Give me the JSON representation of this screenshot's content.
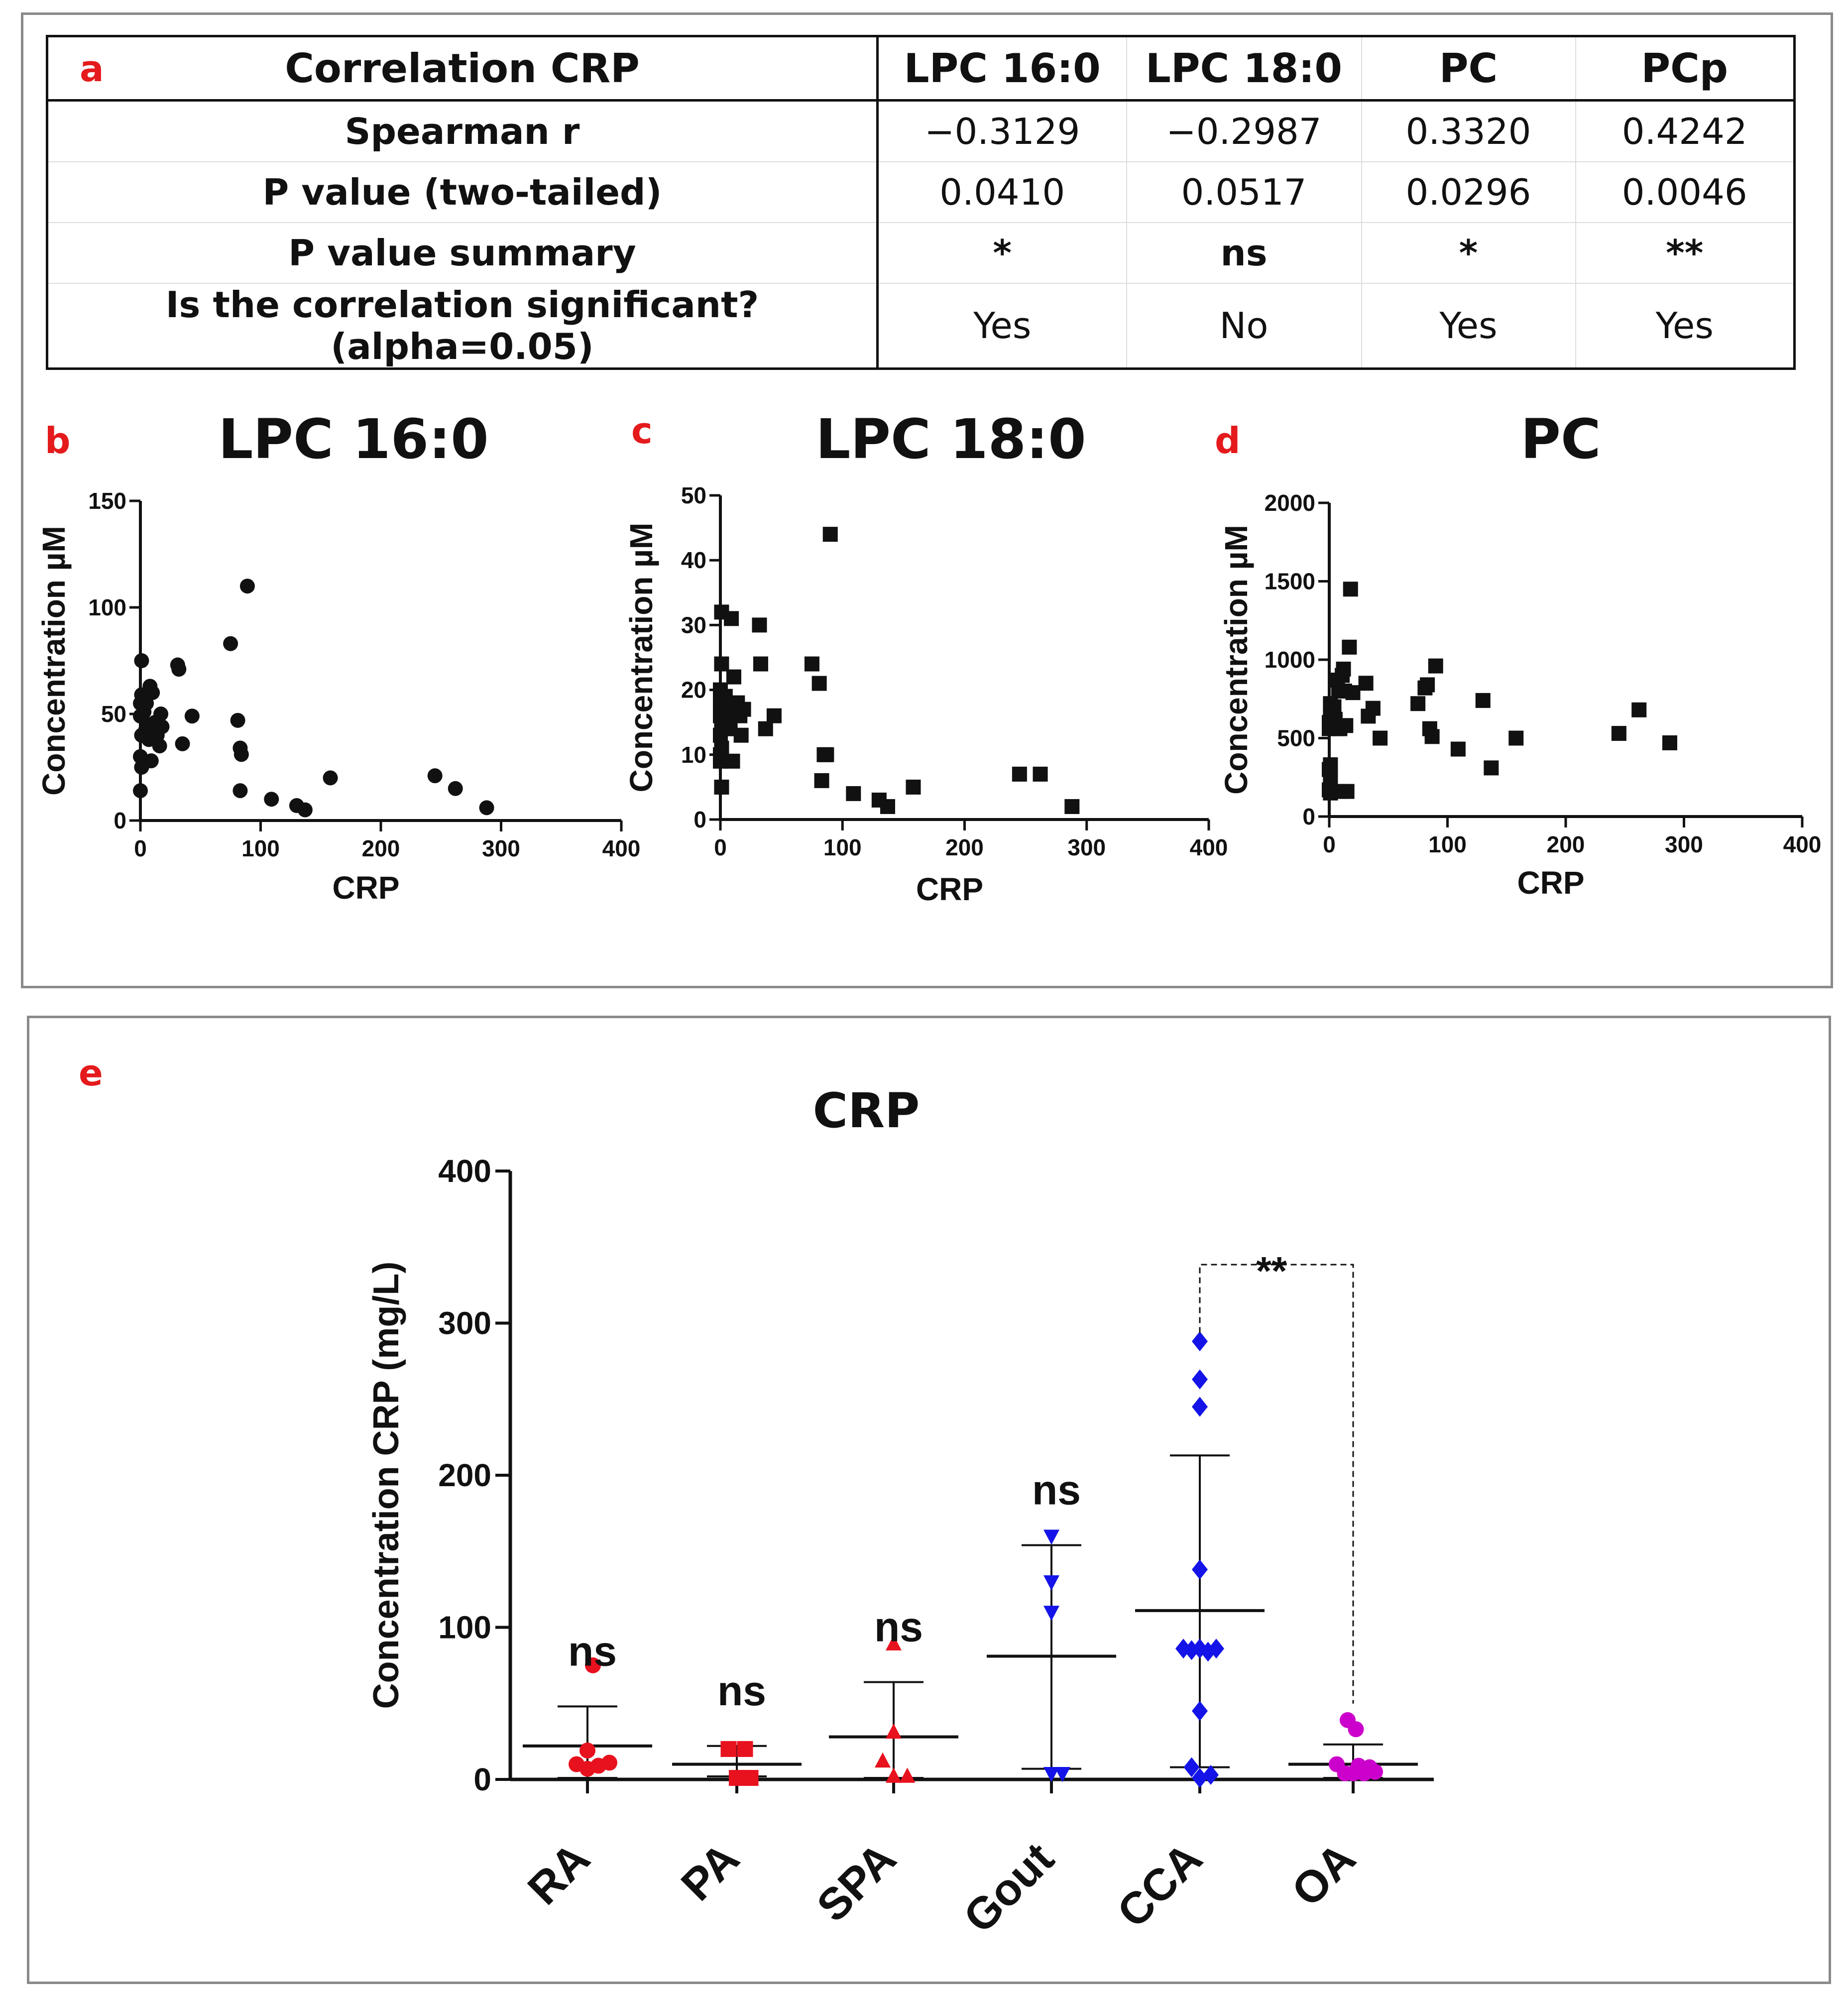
{
  "table": {
    "letter": "a",
    "header": [
      "Correlation CRP",
      "LPC 16:0",
      "LPC 18:0",
      "PC",
      "PCp"
    ],
    "rows": [
      {
        "label": "Spearman r",
        "values": [
          "−0.3129",
          "−0.2987",
          "0.3320",
          "0.4242"
        ],
        "bold": false
      },
      {
        "label": "P value (two-tailed)",
        "values": [
          "0.0410",
          "0.0517",
          "0.0296",
          "0.0046"
        ],
        "bold": false
      },
      {
        "label": "P value summary",
        "values": [
          "*",
          "ns",
          "*",
          "**"
        ],
        "bold": true
      },
      {
        "label": "Is the correlation significant? (alpha=0.05)",
        "values": [
          "Yes",
          "No",
          "Yes",
          "Yes"
        ],
        "bold": false
      }
    ]
  },
  "chart_data": [
    {
      "type": "scatter",
      "letter": "b",
      "title": "LPC 16:0",
      "xlabel": "CRP",
      "ylabel": "Concentration µM",
      "xlim": [
        0,
        400
      ],
      "ylim": [
        0,
        150
      ],
      "xticks": [
        0,
        100,
        200,
        300,
        400
      ],
      "yticks": [
        0,
        50,
        100,
        150
      ],
      "marker": "circle",
      "points": [
        [
          1,
          75
        ],
        [
          1,
          59
        ],
        [
          0,
          55
        ],
        [
          0,
          49
        ],
        [
          1,
          40
        ],
        [
          0,
          30
        ],
        [
          1,
          25
        ],
        [
          0,
          14
        ],
        [
          3,
          51
        ],
        [
          4,
          42
        ],
        [
          3,
          27
        ],
        [
          4,
          58
        ],
        [
          5,
          55
        ],
        [
          6,
          45
        ],
        [
          7,
          38
        ],
        [
          8,
          63
        ],
        [
          9,
          28
        ],
        [
          10,
          60
        ],
        [
          12,
          46
        ],
        [
          14,
          40
        ],
        [
          16,
          35
        ],
        [
          17,
          50
        ],
        [
          18,
          44
        ],
        [
          31,
          73
        ],
        [
          32,
          71
        ],
        [
          35,
          36
        ],
        [
          43,
          49
        ],
        [
          75,
          83
        ],
        [
          81,
          47
        ],
        [
          83,
          34
        ],
        [
          84,
          31
        ],
        [
          83,
          14
        ],
        [
          89,
          110
        ],
        [
          109,
          10
        ],
        [
          130,
          7
        ],
        [
          137,
          5
        ],
        [
          158,
          20
        ],
        [
          245,
          21
        ],
        [
          262,
          15
        ],
        [
          288,
          6
        ]
      ]
    },
    {
      "type": "scatter",
      "letter": "c",
      "title": "LPC 18:0",
      "xlabel": "CRP",
      "ylabel": "Concentration µM",
      "xlim": [
        0,
        400
      ],
      "ylim": [
        0,
        50
      ],
      "xticks": [
        0,
        100,
        200,
        300,
        400
      ],
      "yticks": [
        0,
        10,
        20,
        30,
        40,
        50
      ],
      "marker": "square",
      "points": [
        [
          1,
          32
        ],
        [
          1,
          24
        ],
        [
          0,
          20
        ],
        [
          0,
          18
        ],
        [
          1,
          17
        ],
        [
          0,
          16
        ],
        [
          1,
          15
        ],
        [
          0,
          13
        ],
        [
          1,
          11
        ],
        [
          0,
          10
        ],
        [
          0,
          9
        ],
        [
          1,
          5
        ],
        [
          4,
          19
        ],
        [
          5,
          17
        ],
        [
          6,
          16
        ],
        [
          7,
          15
        ],
        [
          8,
          14
        ],
        [
          9,
          31
        ],
        [
          10,
          9
        ],
        [
          11,
          22
        ],
        [
          14,
          18
        ],
        [
          16,
          16
        ],
        [
          17,
          13
        ],
        [
          19,
          17
        ],
        [
          32,
          30
        ],
        [
          33,
          24
        ],
        [
          37,
          14
        ],
        [
          44,
          16
        ],
        [
          75,
          24
        ],
        [
          81,
          21
        ],
        [
          83,
          6
        ],
        [
          85,
          10
        ],
        [
          87,
          10
        ],
        [
          90,
          44
        ],
        [
          109,
          4
        ],
        [
          130,
          3
        ],
        [
          137,
          2
        ],
        [
          158,
          5
        ],
        [
          245,
          7
        ],
        [
          262,
          7
        ],
        [
          288,
          2
        ]
      ]
    },
    {
      "type": "scatter",
      "letter": "d",
      "title": "PC",
      "xlabel": "CRP",
      "ylabel": "Concentration µM",
      "xlim": [
        0,
        400
      ],
      "ylim": [
        0,
        2000
      ],
      "xticks": [
        0,
        100,
        200,
        300,
        400
      ],
      "yticks": [
        0,
        500,
        1000,
        1500,
        2000
      ],
      "marker": "square",
      "points": [
        [
          1,
          720
        ],
        [
          1,
          650
        ],
        [
          0,
          600
        ],
        [
          0,
          560
        ],
        [
          1,
          330
        ],
        [
          0,
          300
        ],
        [
          1,
          250
        ],
        [
          0,
          170
        ],
        [
          1,
          150
        ],
        [
          4,
          700
        ],
        [
          5,
          620
        ],
        [
          6,
          560
        ],
        [
          7,
          870
        ],
        [
          8,
          800
        ],
        [
          9,
          560
        ],
        [
          10,
          160
        ],
        [
          11,
          900
        ],
        [
          12,
          940
        ],
        [
          13,
          800
        ],
        [
          14,
          580
        ],
        [
          15,
          160
        ],
        [
          17,
          1080
        ],
        [
          18,
          1450
        ],
        [
          20,
          790
        ],
        [
          31,
          850
        ],
        [
          33,
          640
        ],
        [
          37,
          690
        ],
        [
          43,
          500
        ],
        [
          75,
          720
        ],
        [
          81,
          820
        ],
        [
          83,
          840
        ],
        [
          85,
          560
        ],
        [
          87,
          510
        ],
        [
          90,
          960
        ],
        [
          109,
          430
        ],
        [
          130,
          740
        ],
        [
          137,
          310
        ],
        [
          158,
          500
        ],
        [
          245,
          530
        ],
        [
          262,
          680
        ],
        [
          288,
          470
        ]
      ]
    },
    {
      "type": "scatter",
      "letter": "e",
      "title": "CRP",
      "ylabel": "Concentration CRP (mg/L)",
      "ylim": [
        0,
        400
      ],
      "yticks": [
        0,
        100,
        200,
        300,
        400
      ],
      "categories": [
        "RA",
        "PA",
        "SPA",
        "Gout",
        "CCA",
        "OA"
      ],
      "groups": [
        {
          "name": "RA",
          "marker": "circle",
          "color": "#e8111e",
          "mean": 22,
          "sd_low": 1,
          "sd_high": 48,
          "annotation": "ns",
          "points": [
            [
              0,
              19
            ],
            [
              -0.2,
              10
            ],
            [
              0.1,
              75
            ],
            [
              0,
              7
            ],
            [
              0.2,
              9
            ],
            [
              0.4,
              11
            ]
          ]
        },
        {
          "name": "PA",
          "marker": "square",
          "color": "#e8111e",
          "mean": 10,
          "sd_low": 2,
          "sd_high": 22,
          "annotation": "ns",
          "points": [
            [
              -0.15,
              20
            ],
            [
              0.15,
              20
            ],
            [
              0,
              1
            ],
            [
              0.25,
              1
            ]
          ]
        },
        {
          "name": "SPA",
          "marker": "triangle-up",
          "color": "#e8111e",
          "mean": 28,
          "sd_low": 1,
          "sd_high": 64,
          "annotation": "ns",
          "points": [
            [
              -0.2,
              12
            ],
            [
              0,
              31
            ],
            [
              0,
              89
            ],
            [
              0,
              2
            ],
            [
              0.25,
              2
            ]
          ]
        },
        {
          "name": "Gout",
          "marker": "triangle-down",
          "color": "#1414e8",
          "mean": 81,
          "sd_low": 7,
          "sd_high": 154,
          "annotation": "ns",
          "points": [
            [
              0,
              160
            ],
            [
              0,
              130
            ],
            [
              0,
              110
            ],
            [
              0,
              4
            ],
            [
              0.2,
              4
            ]
          ]
        },
        {
          "name": "CCA",
          "marker": "diamond",
          "color": "#1414e8",
          "mean": 111,
          "sd_low": 8,
          "sd_high": 213,
          "annotation": "",
          "points": [
            [
              0,
              288
            ],
            [
              0,
              263
            ],
            [
              0,
              245
            ],
            [
              0,
              138
            ],
            [
              -0.3,
              86
            ],
            [
              -0.15,
              85
            ],
            [
              0,
              86
            ],
            [
              0.15,
              84
            ],
            [
              0.3,
              86
            ],
            [
              0,
              45
            ],
            [
              -0.15,
              8
            ],
            [
              0,
              1
            ],
            [
              0.2,
              3
            ]
          ]
        },
        {
          "name": "OA",
          "marker": "circle",
          "color": "#cc00cc",
          "mean": 10,
          "sd_low": 1,
          "sd_high": 23,
          "annotation": "",
          "points": [
            [
              -0.1,
              39
            ],
            [
              0.05,
              33
            ],
            [
              -0.3,
              10
            ],
            [
              -0.15,
              4
            ],
            [
              0,
              4
            ],
            [
              0.1,
              9
            ],
            [
              0.2,
              4
            ],
            [
              0.3,
              8
            ],
            [
              0.4,
              5
            ]
          ]
        }
      ],
      "comparison": {
        "from": "CCA",
        "to": "OA",
        "label": "**"
      }
    }
  ]
}
